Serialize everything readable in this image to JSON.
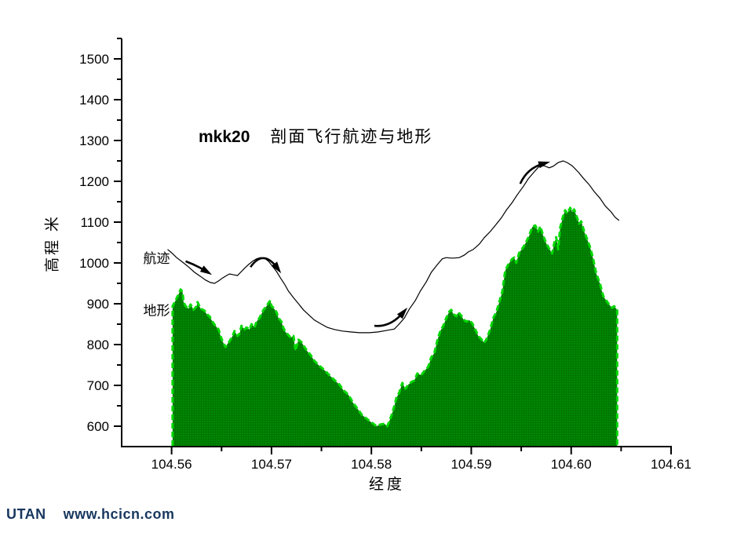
{
  "watermark": {
    "brand": "UTAN",
    "url": "www.hcicn.com",
    "color": "#17375e"
  },
  "chart_data": {
    "type": "area",
    "title_bold": "mkk20",
    "title": "剖面飞行航迹与地形",
    "xlabel": "经度",
    "ylabel": "高程 米",
    "xlim": [
      104.555,
      104.61
    ],
    "ylim": [
      550,
      1550
    ],
    "grid": false,
    "legend_position": "none",
    "x_major_ticks": [
      104.56,
      104.57,
      104.58,
      104.59,
      104.6,
      104.61
    ],
    "x_tick_labels": [
      "104.56",
      "104.57",
      "104.58",
      "104.59",
      "104.60",
      "104.61"
    ],
    "x_minor_ticks": [
      104.565,
      104.575,
      104.585,
      104.595,
      104.605
    ],
    "y_major_ticks": [
      600,
      700,
      800,
      900,
      1000,
      1100,
      1200,
      1300,
      1400,
      1500
    ],
    "y_tick_labels": [
      "600",
      "700",
      "800",
      "900",
      "1000",
      "1100",
      "1200",
      "1300",
      "1400",
      "1500"
    ],
    "y_minor_ticks": [
      650,
      750,
      850,
      950,
      1050,
      1150,
      1250,
      1350,
      1450,
      1550
    ],
    "colors": {
      "terrain_fill": "#008203",
      "terrain_fill_dot": "#015c02",
      "terrain_edge": "#00d800",
      "flight_line": "#000000",
      "arrow": "#000000"
    },
    "labels": [
      {
        "id": "trajectory",
        "text": "航迹",
        "lon": 104.5585,
        "elev": 1012
      },
      {
        "id": "terrain",
        "text": "地形",
        "lon": 104.5585,
        "elev": 884
      }
    ],
    "arrows": [
      {
        "from": [
          104.5614,
          1004
        ],
        "ctrl": [
          104.5625,
          994
        ],
        "to": [
          104.5635,
          979
        ]
      },
      {
        "from": [
          104.5679,
          990
        ],
        "ctrl": [
          104.5692,
          1035
        ],
        "to": [
          104.5706,
          987
        ]
      },
      {
        "from": [
          104.5803,
          846
        ],
        "ctrl": [
          104.5819,
          842
        ],
        "to": [
          104.5832,
          879
        ]
      },
      {
        "from": [
          104.5949,
          1194
        ],
        "ctrl": [
          104.5956,
          1233
        ],
        "to": [
          104.5973,
          1244
        ]
      }
    ],
    "series": [
      {
        "name": "航迹",
        "type": "line",
        "points": [
          [
            104.5596,
            1033
          ],
          [
            104.56,
            1025
          ],
          [
            104.5605,
            1013
          ],
          [
            104.5611,
            1002
          ],
          [
            104.5617,
            990
          ],
          [
            104.5623,
            977
          ],
          [
            104.5629,
            967
          ],
          [
            104.5634,
            958
          ],
          [
            104.5639,
            952
          ],
          [
            104.5643,
            950
          ],
          [
            104.5647,
            956
          ],
          [
            104.5651,
            963
          ],
          [
            104.5655,
            969
          ],
          [
            104.5658,
            973
          ],
          [
            104.5662,
            971
          ],
          [
            104.5666,
            969
          ],
          [
            104.5669,
            977
          ],
          [
            104.5673,
            987
          ],
          [
            104.5677,
            996
          ],
          [
            104.5681,
            1004
          ],
          [
            104.5685,
            1010
          ],
          [
            104.5689,
            1013
          ],
          [
            104.5693,
            1012
          ],
          [
            104.5697,
            1004
          ],
          [
            104.5701,
            992
          ],
          [
            104.5705,
            979
          ],
          [
            104.5709,
            963
          ],
          [
            104.5713,
            948
          ],
          [
            104.5717,
            931
          ],
          [
            104.5722,
            915
          ],
          [
            104.5727,
            900
          ],
          [
            104.5732,
            885
          ],
          [
            104.5738,
            871
          ],
          [
            104.5743,
            860
          ],
          [
            104.575,
            850
          ],
          [
            104.5756,
            842
          ],
          [
            104.5763,
            837
          ],
          [
            104.5771,
            833
          ],
          [
            104.5779,
            831
          ],
          [
            104.5788,
            829
          ],
          [
            104.5798,
            829
          ],
          [
            104.5807,
            831
          ],
          [
            104.5816,
            835
          ],
          [
            104.5823,
            838
          ],
          [
            104.5827,
            848
          ],
          [
            104.5833,
            865
          ],
          [
            104.5838,
            887
          ],
          [
            104.5844,
            908
          ],
          [
            104.5849,
            931
          ],
          [
            104.5855,
            954
          ],
          [
            104.586,
            977
          ],
          [
            104.5866,
            996
          ],
          [
            104.5871,
            1010
          ],
          [
            104.5875,
            1013
          ],
          [
            104.5879,
            1012
          ],
          [
            104.5883,
            1012
          ],
          [
            104.5888,
            1013
          ],
          [
            104.5893,
            1019
          ],
          [
            104.5897,
            1027
          ],
          [
            104.5902,
            1033
          ],
          [
            104.5908,
            1046
          ],
          [
            104.5913,
            1062
          ],
          [
            104.5919,
            1077
          ],
          [
            104.5924,
            1092
          ],
          [
            104.593,
            1110
          ],
          [
            104.5935,
            1129
          ],
          [
            104.5941,
            1148
          ],
          [
            104.5946,
            1167
          ],
          [
            104.5952,
            1187
          ],
          [
            104.5957,
            1206
          ],
          [
            104.5963,
            1223
          ],
          [
            104.5968,
            1237
          ],
          [
            104.5973,
            1238
          ],
          [
            104.5978,
            1233
          ],
          [
            104.5982,
            1237
          ],
          [
            104.5987,
            1246
          ],
          [
            104.5992,
            1250
          ],
          [
            104.5996,
            1246
          ],
          [
            104.6001,
            1238
          ],
          [
            104.6007,
            1223
          ],
          [
            104.6012,
            1208
          ],
          [
            104.6018,
            1192
          ],
          [
            104.6023,
            1175
          ],
          [
            104.6029,
            1158
          ],
          [
            104.6034,
            1140
          ],
          [
            104.604,
            1125
          ],
          [
            104.6044,
            1112
          ],
          [
            104.6048,
            1104
          ]
        ]
      },
      {
        "name": "地形",
        "type": "area",
        "baseline": 550,
        "points": [
          [
            104.5601,
            894
          ],
          [
            104.5604,
            908
          ],
          [
            104.5607,
            923
          ],
          [
            104.5609,
            935
          ],
          [
            104.5611,
            929
          ],
          [
            104.5612,
            904
          ],
          [
            104.5614,
            894
          ],
          [
            104.5617,
            888
          ],
          [
            104.5619,
            898
          ],
          [
            104.5622,
            885
          ],
          [
            104.5625,
            894
          ],
          [
            104.5626,
            904
          ],
          [
            104.5629,
            888
          ],
          [
            104.5633,
            883
          ],
          [
            104.5635,
            875
          ],
          [
            104.5638,
            869
          ],
          [
            104.564,
            860
          ],
          [
            104.5642,
            852
          ],
          [
            104.5644,
            846
          ],
          [
            104.5647,
            837
          ],
          [
            104.5649,
            821
          ],
          [
            104.5651,
            808
          ],
          [
            104.5654,
            794
          ],
          [
            104.5656,
            802
          ],
          [
            104.5658,
            808
          ],
          [
            104.5661,
            821
          ],
          [
            104.5663,
            833
          ],
          [
            104.5666,
            821
          ],
          [
            104.5668,
            827
          ],
          [
            104.567,
            846
          ],
          [
            104.5673,
            837
          ],
          [
            104.5675,
            842
          ],
          [
            104.5678,
            837
          ],
          [
            104.568,
            850
          ],
          [
            104.5683,
            842
          ],
          [
            104.5685,
            856
          ],
          [
            104.5688,
            865
          ],
          [
            104.569,
            875
          ],
          [
            104.5692,
            885
          ],
          [
            104.5695,
            894
          ],
          [
            104.5697,
            902
          ],
          [
            104.5699,
            908
          ],
          [
            104.57,
            894
          ],
          [
            104.5702,
            890
          ],
          [
            104.5705,
            879
          ],
          [
            104.5707,
            865
          ],
          [
            104.571,
            856
          ],
          [
            104.5712,
            840
          ],
          [
            104.5714,
            831
          ],
          [
            104.5717,
            823
          ],
          [
            104.5719,
            817
          ],
          [
            104.5722,
            821
          ],
          [
            104.5724,
            785
          ],
          [
            104.5727,
            812
          ],
          [
            104.573,
            806
          ],
          [
            104.5733,
            794
          ],
          [
            104.5736,
            783
          ],
          [
            104.5739,
            775
          ],
          [
            104.5743,
            760
          ],
          [
            104.5747,
            750
          ],
          [
            104.575,
            744
          ],
          [
            104.5754,
            735
          ],
          [
            104.5758,
            725
          ],
          [
            104.5763,
            713
          ],
          [
            104.5768,
            702
          ],
          [
            104.5772,
            688
          ],
          [
            104.5777,
            677
          ],
          [
            104.5782,
            656
          ],
          [
            104.5787,
            640
          ],
          [
            104.579,
            629
          ],
          [
            104.5794,
            621
          ],
          [
            104.5798,
            613
          ],
          [
            104.5802,
            606
          ],
          [
            104.5805,
            600
          ],
          [
            104.5809,
            604
          ],
          [
            104.5813,
            606
          ],
          [
            104.5816,
            600
          ],
          [
            104.582,
            625
          ],
          [
            104.5823,
            650
          ],
          [
            104.5825,
            669
          ],
          [
            104.5828,
            683
          ],
          [
            104.5831,
            706
          ],
          [
            104.5834,
            692
          ],
          [
            104.5837,
            702
          ],
          [
            104.584,
            708
          ],
          [
            104.5843,
            712
          ],
          [
            104.5846,
            729
          ],
          [
            104.585,
            725
          ],
          [
            104.5853,
            735
          ],
          [
            104.5857,
            746
          ],
          [
            104.586,
            769
          ],
          [
            104.5863,
            779
          ],
          [
            104.5866,
            810
          ],
          [
            104.5869,
            833
          ],
          [
            104.5872,
            846
          ],
          [
            104.5875,
            865
          ],
          [
            104.5878,
            881
          ],
          [
            104.588,
            885
          ],
          [
            104.5882,
            875
          ],
          [
            104.5885,
            869
          ],
          [
            104.5887,
            879
          ],
          [
            104.589,
            871
          ],
          [
            104.5892,
            862
          ],
          [
            104.5895,
            856
          ],
          [
            104.5898,
            860
          ],
          [
            104.5901,
            852
          ],
          [
            104.5904,
            837
          ],
          [
            104.5907,
            821
          ],
          [
            104.591,
            813
          ],
          [
            104.5913,
            804
          ],
          [
            104.5915,
            812
          ],
          [
            104.5919,
            837
          ],
          [
            104.5922,
            865
          ],
          [
            104.5925,
            879
          ],
          [
            104.5928,
            904
          ],
          [
            104.5931,
            929
          ],
          [
            104.5934,
            981
          ],
          [
            104.5937,
            996
          ],
          [
            104.5941,
            1010
          ],
          [
            104.5943,
            1013
          ],
          [
            104.5945,
            1000
          ],
          [
            104.5948,
            1025
          ],
          [
            104.5952,
            1038
          ],
          [
            104.5955,
            1052
          ],
          [
            104.5958,
            1067
          ],
          [
            104.5961,
            1088
          ],
          [
            104.5964,
            1092
          ],
          [
            104.5967,
            1077
          ],
          [
            104.5969,
            1090
          ],
          [
            104.5972,
            1067
          ],
          [
            104.5975,
            1048
          ],
          [
            104.5978,
            1035
          ],
          [
            104.5981,
            1023
          ],
          [
            104.5983,
            1048
          ],
          [
            104.5985,
            1063
          ],
          [
            104.5987,
            1033
          ],
          [
            104.5989,
            1086
          ],
          [
            104.5992,
            1115
          ],
          [
            104.5994,
            1129
          ],
          [
            104.5996,
            1121
          ],
          [
            104.5999,
            1135
          ],
          [
            104.6001,
            1125
          ],
          [
            104.6003,
            1131
          ],
          [
            104.6006,
            1110
          ],
          [
            104.6008,
            1096
          ],
          [
            104.601,
            1102
          ],
          [
            104.6013,
            1077
          ],
          [
            104.6016,
            1058
          ],
          [
            104.6019,
            1038
          ],
          [
            104.6022,
            1010
          ],
          [
            104.6025,
            975
          ],
          [
            104.6029,
            948
          ],
          [
            104.6032,
            919
          ],
          [
            104.6035,
            908
          ],
          [
            104.6038,
            898
          ],
          [
            104.6041,
            890
          ],
          [
            104.6043,
            894
          ],
          [
            104.6046,
            885
          ]
        ]
      }
    ]
  }
}
